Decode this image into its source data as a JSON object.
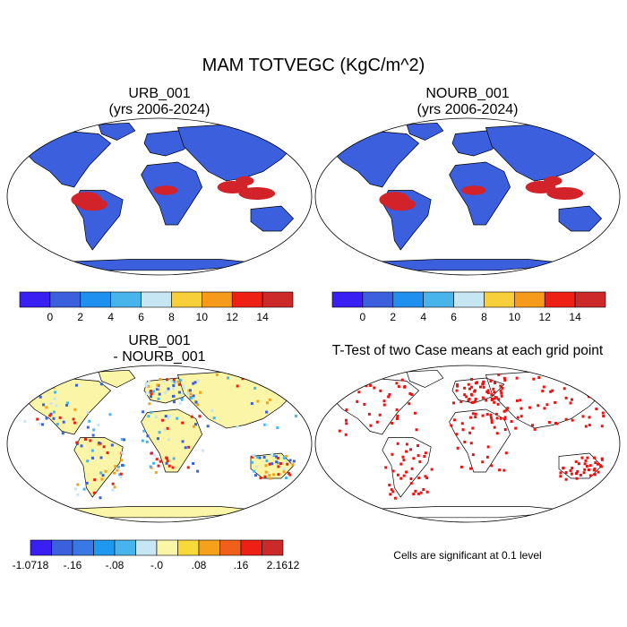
{
  "figure": {
    "title": "MAM TOTVEGC (KgC/m^2)"
  },
  "panels": [
    {
      "id": "urb",
      "title_line1": "URB_001",
      "title_line2": "(yrs 2006-2024)"
    },
    {
      "id": "nourb",
      "title_line1": "NOURB_001",
      "title_line2": "(yrs 2006-2024)"
    },
    {
      "id": "diff",
      "title_line1": "URB_001",
      "title_line2": "- NOURB_001"
    },
    {
      "id": "ttest",
      "title_line1": "T-Test of two Case means at each grid point",
      "note": "Cells are significant at 0.1 level"
    }
  ],
  "colorbars": {
    "absolute": {
      "colors": [
        "#3a1ff2",
        "#3b5fdd",
        "#1f8ff0",
        "#48b4ec",
        "#c5e6f2",
        "#f7cf3a",
        "#f59a1a",
        "#ee1f14",
        "#cc2a2a"
      ],
      "labels": [
        "0",
        "2",
        "4",
        "6",
        "8",
        "10",
        "12",
        "14"
      ]
    },
    "difference": {
      "colors": [
        "#3a1ff2",
        "#3b5fdd",
        "#3a78e6",
        "#1f98f0",
        "#48b4ec",
        "#c5e6f2",
        "#fbf5a8",
        "#f7d93a",
        "#f5a21a",
        "#f0601a",
        "#ee1f14",
        "#cc2a2a"
      ],
      "labels": [
        "-1.0718",
        "-.16",
        "-.08",
        "-.0",
        ".08",
        ".16",
        "2.1612"
      ]
    }
  },
  "map_colors": {
    "land_low": "#3b5fdd",
    "land_high": "#d2232a",
    "diff_bg": "#fbf5a8",
    "sig": "#ee1111"
  }
}
